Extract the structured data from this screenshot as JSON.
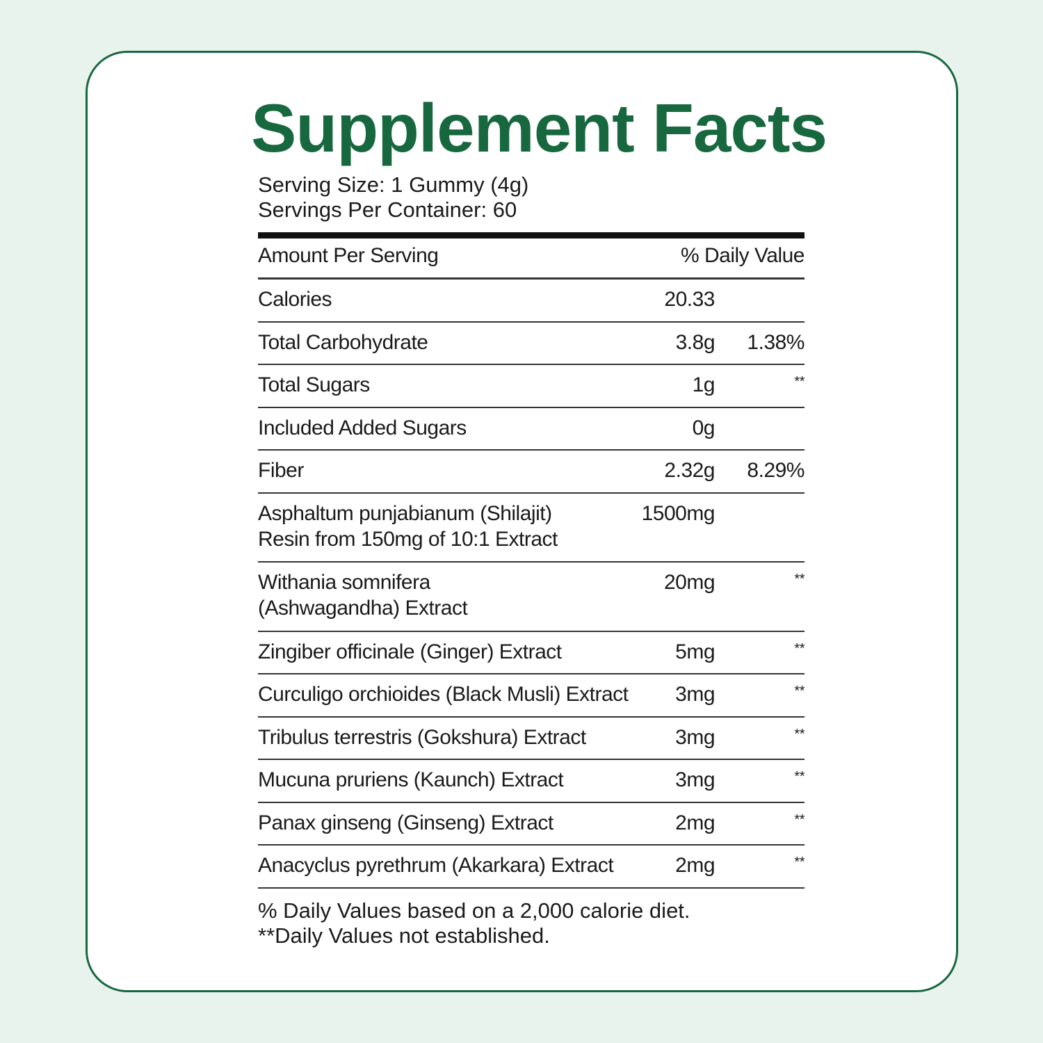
{
  "title": "Supplement Facts",
  "serving_size": "Serving Size: 1 Gummy (4g)",
  "servings_per_container": "Servings Per Container: 60",
  "header": {
    "amount": "Amount Per Serving",
    "dv": "% Daily Value"
  },
  "rows": [
    {
      "name": "Calories",
      "amount": "20.33",
      "dv": ""
    },
    {
      "name": "Total Carbohydrate",
      "amount": "3.8g",
      "dv": "1.38%"
    },
    {
      "name": "Total Sugars",
      "amount": "1g",
      "dv": "**"
    },
    {
      "name": "Included Added Sugars",
      "amount": "0g",
      "dv": ""
    },
    {
      "name": "Fiber",
      "amount": "2.32g",
      "dv": "8.29%"
    },
    {
      "name": "Asphaltum punjabianum (Shilajit)",
      "name2": "Resin from 150mg of 10:1 Extract",
      "amount": "1500mg",
      "dv": ""
    },
    {
      "name": "Withania somnifera",
      "name2": "(Ashwagandha) Extract",
      "amount": "20mg",
      "dv": "**"
    },
    {
      "name": "Zingiber officinale (Ginger) Extract",
      "amount": "5mg",
      "dv": "**"
    },
    {
      "name": "Curculigo orchioides (Black Musli) Extract",
      "amount": "3mg",
      "dv": "**"
    },
    {
      "name": "Tribulus terrestris (Gokshura) Extract",
      "amount": "3mg",
      "dv": "**"
    },
    {
      "name": "Mucuna pruriens (Kaunch) Extract",
      "amount": "3mg",
      "dv": "**"
    },
    {
      "name": "Panax ginseng (Ginseng) Extract",
      "amount": "2mg",
      "dv": "**"
    },
    {
      "name": "Anacyclus pyrethrum (Akarkara) Extract",
      "amount": "2mg",
      "dv": "**"
    }
  ],
  "footer": {
    "line1": "% Daily Values based on a 2,000 calorie diet.",
    "line2": "**Daily Values not established."
  },
  "colors": {
    "brand_green": "#17683f",
    "background": "#e9f3ed"
  }
}
